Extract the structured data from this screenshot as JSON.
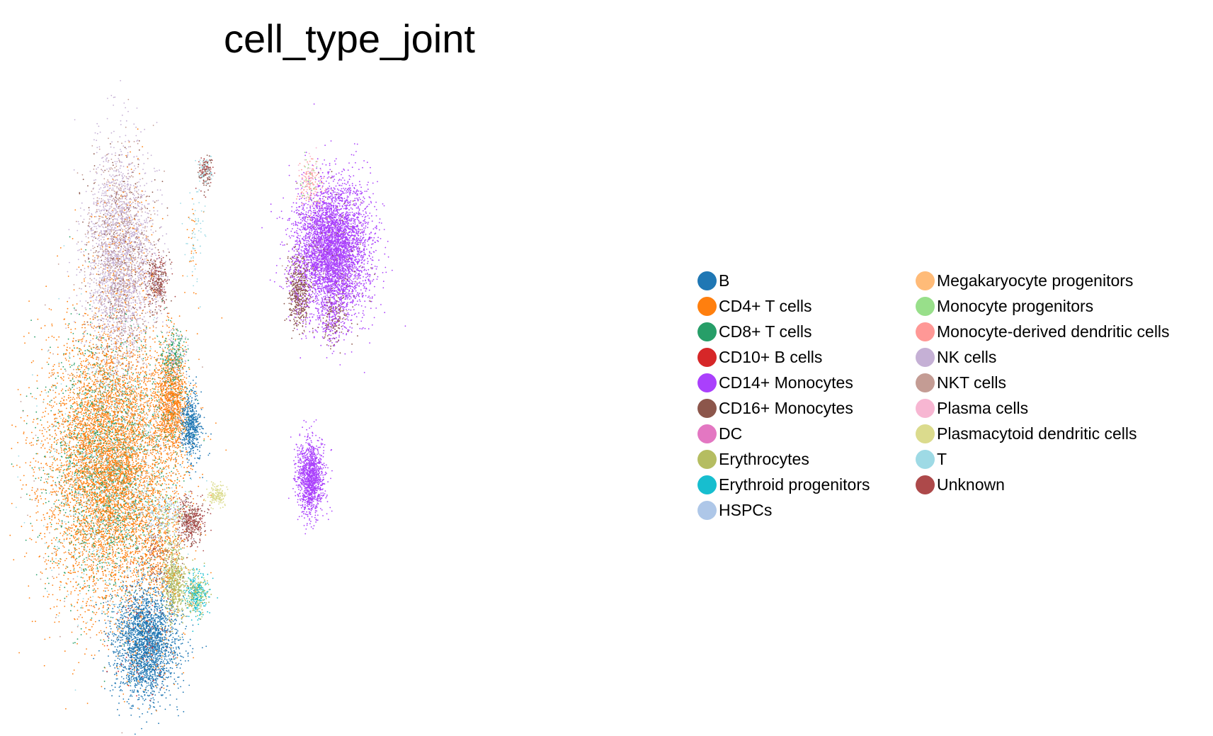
{
  "chart_data": {
    "type": "scatter",
    "title": "cell_type_joint",
    "xlabel": "",
    "ylabel": "",
    "axes": "off",
    "grid": false,
    "legend_position": "right",
    "legend": [
      {
        "label": "B",
        "color": "#1f77b4"
      },
      {
        "label": "CD4+ T cells",
        "color": "#ff7f0e"
      },
      {
        "label": "CD8+ T cells",
        "color": "#279e68"
      },
      {
        "label": "CD10+ B cells",
        "color": "#d62728"
      },
      {
        "label": "CD14+ Monocytes",
        "color": "#aa40fc"
      },
      {
        "label": "CD16+ Monocytes",
        "color": "#8c564b"
      },
      {
        "label": "DC",
        "color": "#e377c2"
      },
      {
        "label": "Erythrocytes",
        "color": "#b5bd61"
      },
      {
        "label": "Erythroid progenitors",
        "color": "#17becf"
      },
      {
        "label": "HSPCs",
        "color": "#aec7e8"
      },
      {
        "label": "Megakaryocyte progenitors",
        "color": "#ffbb78"
      },
      {
        "label": "Monocyte progenitors",
        "color": "#98df8a"
      },
      {
        "label": "Monocyte-derived dendritic cells",
        "color": "#ff9896"
      },
      {
        "label": "NK cells",
        "color": "#c5b0d5"
      },
      {
        "label": "NKT cells",
        "color": "#c49c94"
      },
      {
        "label": "Plasma cells",
        "color": "#f7b6d2"
      },
      {
        "label": "Plasmacytoid dendritic cells",
        "color": "#dbdb8d"
      },
      {
        "label": "T",
        "color": "#9edae5"
      },
      {
        "label": "Unknown",
        "color": "#ad494a"
      }
    ],
    "clusters": [
      {
        "color": "#ff7f0e",
        "cx": 0.105,
        "cy": 0.38,
        "sx": 0.055,
        "sy": 0.11,
        "n": 9000,
        "mix": [
          [
            "#279e68",
            0.18
          ],
          [
            "#9edae5",
            0.08
          ],
          [
            "#c49c94",
            0.05
          ]
        ]
      },
      {
        "color": "#c5b0d5",
        "cx": 0.125,
        "cy": 0.72,
        "sx": 0.03,
        "sy": 0.085,
        "n": 3200,
        "mix": [
          [
            "#c49c94",
            0.25
          ],
          [
            "#8c564b",
            0.08
          ],
          [
            "#ff7f0e",
            0.06
          ]
        ]
      },
      {
        "color": "#1f77b4",
        "cx": 0.17,
        "cy": 0.09,
        "sx": 0.028,
        "sy": 0.045,
        "n": 2600,
        "mix": [
          [
            "#d62728",
            0.04
          ],
          [
            "#ff7f0e",
            0.04
          ]
        ]
      },
      {
        "color": "#ff7f0e",
        "cx": 0.215,
        "cy": 0.48,
        "sx": 0.014,
        "sy": 0.045,
        "n": 1300,
        "mix": [
          [
            "#279e68",
            0.1
          ],
          [
            "#c5b0d5",
            0.08
          ]
        ]
      },
      {
        "color": "#279e68",
        "cx": 0.22,
        "cy": 0.56,
        "sx": 0.012,
        "sy": 0.02,
        "n": 250,
        "mix": [
          [
            "#c5b0d5",
            0.4
          ]
        ]
      },
      {
        "color": "#1f77b4",
        "cx": 0.25,
        "cy": 0.44,
        "sx": 0.009,
        "sy": 0.028,
        "n": 500,
        "mix": []
      },
      {
        "color": "#8c564b",
        "cx": 0.19,
        "cy": 0.68,
        "sx": 0.01,
        "sy": 0.022,
        "n": 350,
        "mix": [
          [
            "#ad494a",
            0.4
          ],
          [
            "#c5b0d5",
            0.2
          ]
        ]
      },
      {
        "color": "#ad494a",
        "cx": 0.25,
        "cy": 0.29,
        "sx": 0.012,
        "sy": 0.018,
        "n": 420,
        "mix": [
          [
            "#8c564b",
            0.3
          ],
          [
            "#c49c94",
            0.1
          ]
        ]
      },
      {
        "color": "#dbdb8d",
        "cx": 0.295,
        "cy": 0.33,
        "sx": 0.008,
        "sy": 0.01,
        "n": 150,
        "mix": []
      },
      {
        "color": "#aec7e8",
        "cx": 0.205,
        "cy": 0.3,
        "sx": 0.02,
        "sy": 0.025,
        "n": 300,
        "mix": [
          [
            "#98df8a",
            0.2
          ],
          [
            "#ff7f0e",
            0.25
          ],
          [
            "#9edae5",
            0.2
          ]
        ]
      },
      {
        "color": "#b5bd61",
        "cx": 0.22,
        "cy": 0.19,
        "sx": 0.01,
        "sy": 0.03,
        "n": 550,
        "mix": [
          [
            "#ff7f0e",
            0.05
          ]
        ]
      },
      {
        "color": "#17becf",
        "cx": 0.26,
        "cy": 0.17,
        "sx": 0.011,
        "sy": 0.018,
        "n": 420,
        "mix": [
          [
            "#b5bd61",
            0.35
          ],
          [
            "#98df8a",
            0.1
          ]
        ]
      },
      {
        "color": "#ff7f0e",
        "cx": 0.19,
        "cy": 0.23,
        "sx": 0.02,
        "sy": 0.03,
        "n": 350,
        "mix": [
          [
            "#8c564b",
            0.2
          ],
          [
            "#ad494a",
            0.15
          ]
        ]
      },
      {
        "color": "#8c564b",
        "cx": 0.275,
        "cy": 0.86,
        "sx": 0.006,
        "sy": 0.012,
        "n": 180,
        "mix": [
          [
            "#ad494a",
            0.3
          ],
          [
            "#9edae5",
            0.3
          ]
        ]
      },
      {
        "color": "#9edae5",
        "cx": 0.255,
        "cy": 0.75,
        "sx": 0.01,
        "sy": 0.04,
        "n": 90,
        "mix": [
          [
            "#ff7f0e",
            0.3
          ]
        ]
      },
      {
        "color": "#aa40fc",
        "cx": 0.5,
        "cy": 0.73,
        "sx": 0.032,
        "sy": 0.055,
        "n": 4800,
        "mix": [
          [
            "#8c564b",
            0.02
          ],
          [
            "#c49c94",
            0.02
          ]
        ]
      },
      {
        "color": "#8c564b",
        "cx": 0.44,
        "cy": 0.66,
        "sx": 0.01,
        "sy": 0.03,
        "n": 480,
        "mix": [
          [
            "#aa40fc",
            0.15
          ]
        ]
      },
      {
        "color": "#8c564b",
        "cx": 0.5,
        "cy": 0.62,
        "sx": 0.012,
        "sy": 0.022,
        "n": 260,
        "mix": [
          [
            "#aa40fc",
            0.5
          ]
        ]
      },
      {
        "color": "#ff9896",
        "cx": 0.46,
        "cy": 0.84,
        "sx": 0.01,
        "sy": 0.02,
        "n": 180,
        "mix": [
          [
            "#98df8a",
            0.2
          ],
          [
            "#f7b6d2",
            0.3
          ]
        ]
      },
      {
        "color": "#aa40fc",
        "cx": 0.46,
        "cy": 0.36,
        "sx": 0.012,
        "sy": 0.03,
        "n": 1200,
        "mix": []
      }
    ]
  },
  "legend_title": ""
}
